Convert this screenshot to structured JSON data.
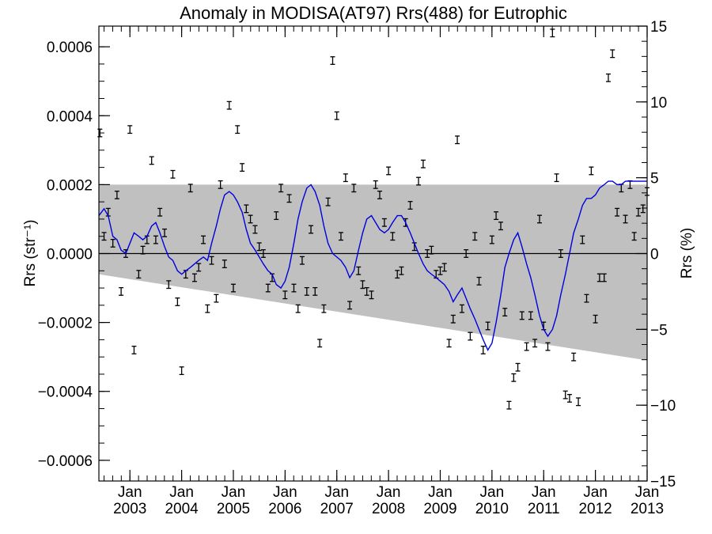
{
  "chart_data": {
    "type": "scatter",
    "title": "Anomaly in MODISA(AT97) Rrs(488) for Eutrophic",
    "ylabel_left": "Rrs (str⁻¹)",
    "ylabel_right": "Rrs (%)",
    "xlim": [
      2002.4,
      2013.0
    ],
    "ylim": [
      -0.00066,
      0.00066
    ],
    "ylim_right": [
      -15,
      15
    ],
    "x_ticks_major": [
      {
        "value": 2003,
        "month": "Jan",
        "year": "2003"
      },
      {
        "value": 2004,
        "month": "Jan",
        "year": "2004"
      },
      {
        "value": 2005,
        "month": "Jan",
        "year": "2005"
      },
      {
        "value": 2006,
        "month": "Jan",
        "year": "2006"
      },
      {
        "value": 2007,
        "month": "Jan",
        "year": "2007"
      },
      {
        "value": 2008,
        "month": "Jan",
        "year": "2008"
      },
      {
        "value": 2009,
        "month": "Jan",
        "year": "2009"
      },
      {
        "value": 2010,
        "month": "Jan",
        "year": "2010"
      },
      {
        "value": 2011,
        "month": "Jan",
        "year": "2011"
      },
      {
        "value": 2012,
        "month": "Jan",
        "year": "2012"
      },
      {
        "value": 2013,
        "month": "Jan",
        "year": "2013"
      }
    ],
    "y_ticks_left": [
      {
        "value": 0.0006,
        "label": "0.0006"
      },
      {
        "value": 0.0004,
        "label": "0.0004"
      },
      {
        "value": 0.0002,
        "label": "0.0002"
      },
      {
        "value": 0.0,
        "label": "0.0000"
      },
      {
        "value": -0.0002,
        "label": "−0.0002"
      },
      {
        "value": -0.0004,
        "label": "−0.0004"
      },
      {
        "value": -0.0006,
        "label": "−0.0006"
      }
    ],
    "y_ticks_right": [
      {
        "value": 15,
        "label": "15"
      },
      {
        "value": 10,
        "label": "10"
      },
      {
        "value": 5,
        "label": "5"
      },
      {
        "value": 0,
        "label": "0"
      },
      {
        "value": -5,
        "label": "−5"
      },
      {
        "value": -10,
        "label": "−10"
      },
      {
        "value": -15,
        "label": "−15"
      }
    ],
    "shaded_band": {
      "color": "#c0c0c0",
      "upper": [
        [
          2002.4,
          0.0002
        ],
        [
          2013.0,
          0.0002
        ]
      ],
      "lower": [
        [
          2002.4,
          -6e-05
        ],
        [
          2013.0,
          -0.00031
        ]
      ]
    },
    "zero_line": 0.0,
    "series": [
      {
        "kind": "errorbar",
        "color": "#000000",
        "error_halfwidth": 1.1e-05,
        "x": [
          2002.42,
          2002.5,
          2002.58,
          2002.67,
          2002.75,
          2002.83,
          2002.92,
          2003.0,
          2003.08,
          2003.17,
          2003.25,
          2003.33,
          2003.42,
          2003.5,
          2003.58,
          2003.67,
          2003.75,
          2003.83,
          2003.92,
          2004.0,
          2004.08,
          2004.17,
          2004.25,
          2004.33,
          2004.42,
          2004.5,
          2004.58,
          2004.67,
          2004.75,
          2004.83,
          2004.92,
          2005.0,
          2005.08,
          2005.17,
          2005.25,
          2005.33,
          2005.42,
          2005.5,
          2005.58,
          2005.67,
          2005.75,
          2005.83,
          2005.92,
          2006.0,
          2006.08,
          2006.17,
          2006.25,
          2006.33,
          2006.42,
          2006.5,
          2006.58,
          2006.67,
          2006.75,
          2006.83,
          2006.92,
          2007.0,
          2007.08,
          2007.17,
          2007.25,
          2007.33,
          2007.42,
          2007.5,
          2007.58,
          2007.67,
          2007.75,
          2007.83,
          2007.92,
          2008.0,
          2008.08,
          2008.17,
          2008.25,
          2008.33,
          2008.42,
          2008.5,
          2008.58,
          2008.67,
          2008.75,
          2008.83,
          2008.92,
          2009.0,
          2009.08,
          2009.17,
          2009.25,
          2009.33,
          2009.42,
          2009.5,
          2009.58,
          2009.67,
          2009.75,
          2009.83,
          2009.92,
          2010.0,
          2010.08,
          2010.17,
          2010.25,
          2010.33,
          2010.42,
          2010.5,
          2010.58,
          2010.67,
          2010.75,
          2010.83,
          2010.92,
          2011.0,
          2011.08,
          2011.17,
          2011.25,
          2011.33,
          2011.42,
          2011.5,
          2011.58,
          2011.67,
          2011.75,
          2011.83,
          2011.92,
          2012.0,
          2012.08,
          2012.17,
          2012.25,
          2012.33,
          2012.42,
          2012.5,
          2012.58,
          2012.67,
          2012.75,
          2012.83,
          2012.92,
          2013.0
        ],
        "y": [
          0.00035,
          5e-05,
          0.00012,
          3e-05,
          0.00017,
          -0.00011,
          0.0,
          0.00036,
          -0.00028,
          -6e-05,
          1e-05,
          4e-05,
          0.00027,
          4e-05,
          0.00012,
          6e-05,
          -9e-05,
          0.00023,
          -0.00014,
          -0.00034,
          -6e-05,
          0.00019,
          -7e-05,
          -4e-05,
          4e-05,
          -0.00016,
          -2e-05,
          -0.00013,
          0.0002,
          -3e-05,
          0.00043,
          -0.0001,
          0.00036,
          0.00025,
          0.00013,
          0.0001,
          7e-05,
          2e-05,
          0.0,
          -0.0001,
          -7e-05,
          0.00011,
          0.00019,
          -0.00012,
          0.00016,
          -0.0001,
          -0.00016,
          -2e-05,
          -0.00011,
          7e-05,
          -0.00011,
          -0.00026,
          -0.00016,
          0.00015,
          0.00056,
          0.0004,
          5e-05,
          0.00022,
          -0.00015,
          0.00019,
          -5e-05,
          -9e-05,
          -0.00011,
          -0.00012,
          0.0002,
          0.00017,
          9e-05,
          0.00024,
          5e-05,
          -6e-05,
          -5e-05,
          9e-05,
          0.00014,
          2e-05,
          0.00021,
          0.00026,
          0.0,
          1e-05,
          -6e-05,
          -5e-05,
          -4e-05,
          -0.00026,
          -0.00019,
          0.00033,
          -0.00016,
          0.0,
          -0.00024,
          5e-05,
          -8e-05,
          -0.00028,
          -0.00021,
          4e-05,
          0.00011,
          8e-05,
          -0.00017,
          -0.00044,
          -0.00036,
          -0.00033,
          -0.00018,
          -0.00027,
          -0.00018,
          -0.00026,
          0.0001,
          -0.00021,
          -0.00027,
          0.00064,
          0.00022,
          0.0,
          -0.00041,
          -0.00042,
          -0.0003,
          -0.00043,
          4e-05,
          -0.00013,
          0.00024,
          -0.00019,
          -7e-05,
          -7e-05,
          0.00051,
          0.00058,
          0.00012,
          0.00019,
          0.0001,
          0.0002,
          5e-05,
          0.00012,
          0.00013,
          0.00018
        ]
      },
      {
        "kind": "line",
        "color": "#0000dd",
        "x": [
          2002.4,
          2002.5,
          2002.58,
          2002.67,
          2002.75,
          2002.83,
          2002.92,
          2003.0,
          2003.08,
          2003.17,
          2003.25,
          2003.33,
          2003.42,
          2003.5,
          2003.58,
          2003.67,
          2003.75,
          2003.83,
          2003.92,
          2004.0,
          2004.08,
          2004.17,
          2004.25,
          2004.33,
          2004.42,
          2004.5,
          2004.58,
          2004.67,
          2004.75,
          2004.83,
          2004.92,
          2005.0,
          2005.08,
          2005.17,
          2005.25,
          2005.33,
          2005.42,
          2005.5,
          2005.58,
          2005.67,
          2005.75,
          2005.83,
          2005.92,
          2006.0,
          2006.08,
          2006.17,
          2006.25,
          2006.33,
          2006.42,
          2006.5,
          2006.58,
          2006.67,
          2006.75,
          2006.83,
          2006.92,
          2007.0,
          2007.08,
          2007.17,
          2007.25,
          2007.33,
          2007.42,
          2007.5,
          2007.58,
          2007.67,
          2007.75,
          2007.83,
          2007.92,
          2008.0,
          2008.08,
          2008.17,
          2008.25,
          2008.33,
          2008.42,
          2008.5,
          2008.58,
          2008.67,
          2008.75,
          2008.83,
          2008.92,
          2009.0,
          2009.08,
          2009.17,
          2009.25,
          2009.33,
          2009.42,
          2009.5,
          2009.58,
          2009.67,
          2009.75,
          2009.83,
          2009.92,
          2010.0,
          2010.08,
          2010.17,
          2010.25,
          2010.33,
          2010.42,
          2010.5,
          2010.58,
          2010.67,
          2010.75,
          2010.83,
          2010.92,
          2011.0,
          2011.08,
          2011.17,
          2011.25,
          2011.33,
          2011.42,
          2011.5,
          2011.58,
          2011.67,
          2011.75,
          2011.83,
          2011.92,
          2012.0,
          2012.08,
          2012.17,
          2012.25,
          2012.33,
          2012.42,
          2012.5,
          2012.58,
          2012.67,
          2012.75,
          2012.83,
          2012.92,
          2013.0
        ],
        "y": [
          0.00011,
          0.00013,
          0.00011,
          5e-05,
          4e-05,
          1e-05,
          0.0,
          3e-05,
          6e-05,
          5e-05,
          4e-05,
          5e-05,
          8e-05,
          9e-05,
          6e-05,
          2e-05,
          -1e-05,
          -2e-05,
          -5e-05,
          -6e-05,
          -5e-05,
          -4e-05,
          -3e-05,
          -2e-05,
          -1e-05,
          -2e-05,
          3e-05,
          8e-05,
          0.00013,
          0.00017,
          0.00018,
          0.00017,
          0.00015,
          0.00012,
          7e-05,
          3e-05,
          1e-05,
          -1e-05,
          -3e-05,
          -5e-05,
          -6e-05,
          -9e-05,
          -0.0001,
          -8e-05,
          -4e-05,
          3e-05,
          0.0001,
          0.00015,
          0.00019,
          0.0002,
          0.00018,
          0.00014,
          8e-05,
          3e-05,
          0.0,
          -1e-05,
          -2e-05,
          -4e-05,
          -7e-05,
          -5e-05,
          1e-05,
          6e-05,
          0.0001,
          0.00011,
          9e-05,
          7e-05,
          6e-05,
          7e-05,
          9e-05,
          0.00011,
          0.00011,
          9e-05,
          6e-05,
          3e-05,
          0.0,
          -3e-05,
          -5e-05,
          -6e-05,
          -7e-05,
          -8e-05,
          -9e-05,
          -0.00011,
          -0.00014,
          -0.00012,
          -0.0001,
          -0.00013,
          -0.00016,
          -0.00019,
          -0.00022,
          -0.00025,
          -0.00028,
          -0.00026,
          -0.0002,
          -0.00012,
          -4e-05,
          0.0,
          4e-05,
          6e-05,
          2e-05,
          -3e-05,
          -7e-05,
          -0.00012,
          -0.00018,
          -0.00022,
          -0.00024,
          -0.00022,
          -0.00018,
          -0.00012,
          -6e-05,
          0.0,
          6e-05,
          0.0001,
          0.00014,
          0.00016,
          0.00016,
          0.00017,
          0.00019,
          0.0002,
          0.00021,
          0.00021,
          0.0002,
          0.0002,
          0.00021,
          0.00021,
          0.00021,
          0.00021,
          0.00021,
          0.00021
        ]
      }
    ]
  }
}
